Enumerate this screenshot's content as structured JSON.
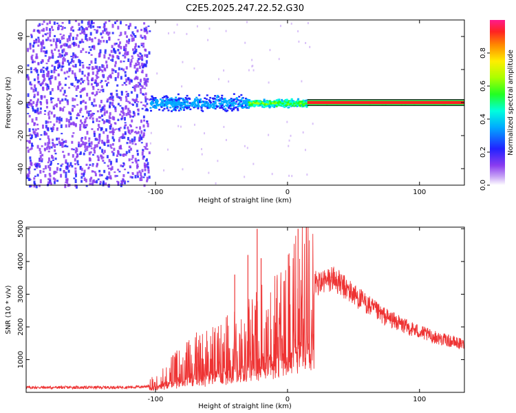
{
  "title": "C2E5.2025.247.22.52.G30",
  "chart_data": [
    {
      "type": "heatmap",
      "title": "C2E5.2025.247.22.52.G30",
      "xlabel": "Height of straight line (km)",
      "ylabel": "Frequency (Hz)",
      "xlim": [
        -198,
        134
      ],
      "ylim": [
        -50,
        50
      ],
      "x_ticks": [
        -100,
        0,
        100
      ],
      "y_ticks": [
        -40,
        -20,
        0,
        20,
        40
      ],
      "colorbar": {
        "label": "Normalized spectral amplitude",
        "range": [
          0,
          1
        ],
        "ticks": [
          0.0,
          0.2,
          0.4,
          0.6,
          0.8
        ]
      },
      "regions": [
        {
          "x_range": [
            -198,
            -105
          ],
          "description": "broadband noise",
          "freq_range": [
            -50,
            50
          ],
          "amplitude": 0.08
        },
        {
          "x_range": [
            -105,
            -30
          ],
          "freq_spread_hz": 6,
          "amplitude": 0.35
        },
        {
          "x_range": [
            -30,
            15
          ],
          "freq_spread_hz": 3,
          "amplitude": 0.65
        },
        {
          "x_range": [
            15,
            134
          ],
          "freq_spread_hz": 1,
          "amplitude": 1.0
        }
      ]
    },
    {
      "type": "line",
      "xlabel": "Height of straight line (km)",
      "ylabel": "SNR (10 * v/v)",
      "xlim": [
        -198,
        134
      ],
      "ylim": [
        0,
        5050
      ],
      "x_ticks": [
        -100,
        0,
        100
      ],
      "y_ticks": [
        1000,
        2000,
        3000,
        4000,
        5000
      ],
      "color": "#ee3333",
      "series": [
        {
          "name": "SNR",
          "x": [
            -198,
            -180,
            -160,
            -140,
            -120,
            -110,
            -105,
            -100,
            -90,
            -80,
            -70,
            -60,
            -50,
            -40,
            -30,
            -25,
            -20,
            -15,
            -10,
            -5,
            0,
            5,
            10,
            20,
            30,
            35,
            40,
            50,
            60,
            70,
            80,
            90,
            100,
            110,
            120,
            134
          ],
          "y": [
            150,
            150,
            150,
            150,
            160,
            170,
            200,
            350,
            550,
            800,
            1000,
            1100,
            1200,
            1400,
            1600,
            1700,
            1800,
            1900,
            2000,
            2100,
            2300,
            2600,
            3000,
            3300,
            3400,
            3500,
            3300,
            3000,
            2700,
            2400,
            2200,
            2000,
            1850,
            1700,
            1600,
            1450
          ]
        }
      ],
      "peaks": [
        {
          "x": -30,
          "y": 4200
        },
        {
          "x": -23,
          "y": 5000
        },
        {
          "x": 8,
          "y": 5000
        },
        {
          "x": -40,
          "y": 3600
        },
        {
          "x": -20,
          "y": 4100
        }
      ]
    }
  ]
}
